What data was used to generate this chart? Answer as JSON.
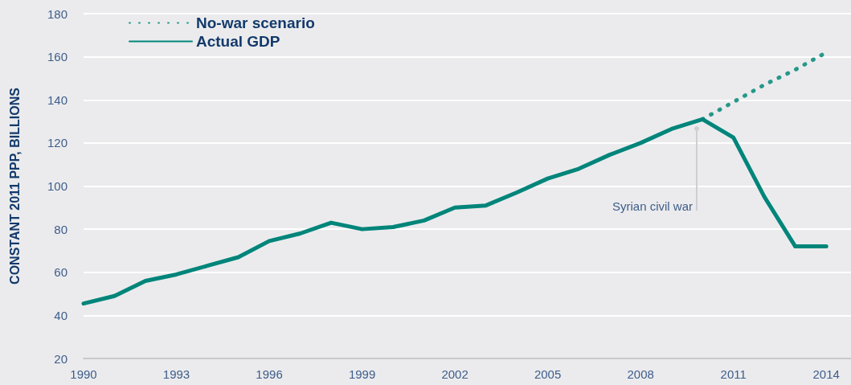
{
  "chart_data": {
    "type": "line",
    "ylabel": "CONSTANT 2011 PPP, BILLIONS",
    "xlim": [
      1990,
      2014.8
    ],
    "xticks": [
      1990,
      1993,
      1996,
      1999,
      2002,
      2005,
      2008,
      2011,
      2014
    ],
    "ylim": [
      20,
      180
    ],
    "yticks": [
      20,
      40,
      60,
      80,
      100,
      120,
      140,
      160,
      180
    ],
    "grid": "y",
    "legend": "top left",
    "marker": "none",
    "annotations": [
      "Syrian civil war"
    ],
    "series": [
      {
        "name": "No-war scenario",
        "color": "#26988a",
        "line_style": "dotted",
        "x": [
          2010,
          2011,
          2012,
          2013,
          2014
        ],
        "values": [
          131,
          139,
          147,
          154,
          162
        ]
      },
      {
        "name": "Actual GDP",
        "color": "#00857a",
        "line_style": "solid",
        "x": [
          1990,
          1991,
          1992,
          1993,
          1994,
          1995,
          1996,
          1997,
          1998,
          1999,
          2000,
          2001,
          2002,
          2003,
          2004,
          2005,
          2006,
          2007,
          2008,
          2009,
          2010,
          2011,
          2012,
          2013,
          2014
        ],
        "values": [
          45.5,
          49,
          56,
          59,
          63,
          67,
          74.5,
          78,
          83,
          80,
          81,
          84,
          90,
          91,
          97,
          103.5,
          108,
          114.5,
          120,
          126.5,
          131,
          122.5,
          95,
          72,
          72
        ]
      }
    ]
  }
}
